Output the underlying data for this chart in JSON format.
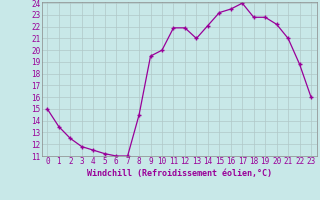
{
  "x": [
    0,
    1,
    2,
    3,
    4,
    5,
    6,
    7,
    8,
    9,
    10,
    11,
    12,
    13,
    14,
    15,
    16,
    17,
    18,
    19,
    20,
    21,
    22,
    23
  ],
  "y": [
    15,
    13.5,
    12.5,
    11.8,
    11.5,
    11.2,
    11.0,
    11.0,
    14.5,
    19.5,
    20.0,
    21.9,
    21.9,
    21.0,
    22.1,
    23.2,
    23.5,
    24.0,
    22.8,
    22.8,
    22.2,
    21.0,
    18.8,
    16.0
  ],
  "line_color": "#990099",
  "marker": "+",
  "bg_color": "#c8e8e8",
  "grid_color": "#b0c8c8",
  "xlabel": "Windchill (Refroidissement éolien,°C)",
  "xlabel_color": "#990099",
  "ylim": [
    11,
    24
  ],
  "xlim": [
    -0.5,
    23.5
  ],
  "yticks": [
    11,
    12,
    13,
    14,
    15,
    16,
    17,
    18,
    19,
    20,
    21,
    22,
    23,
    24
  ],
  "xticks": [
    0,
    1,
    2,
    3,
    4,
    5,
    6,
    7,
    8,
    9,
    10,
    11,
    12,
    13,
    14,
    15,
    16,
    17,
    18,
    19,
    20,
    21,
    22,
    23
  ],
  "tick_fontsize": 5.5,
  "xlabel_fontsize": 6.0
}
